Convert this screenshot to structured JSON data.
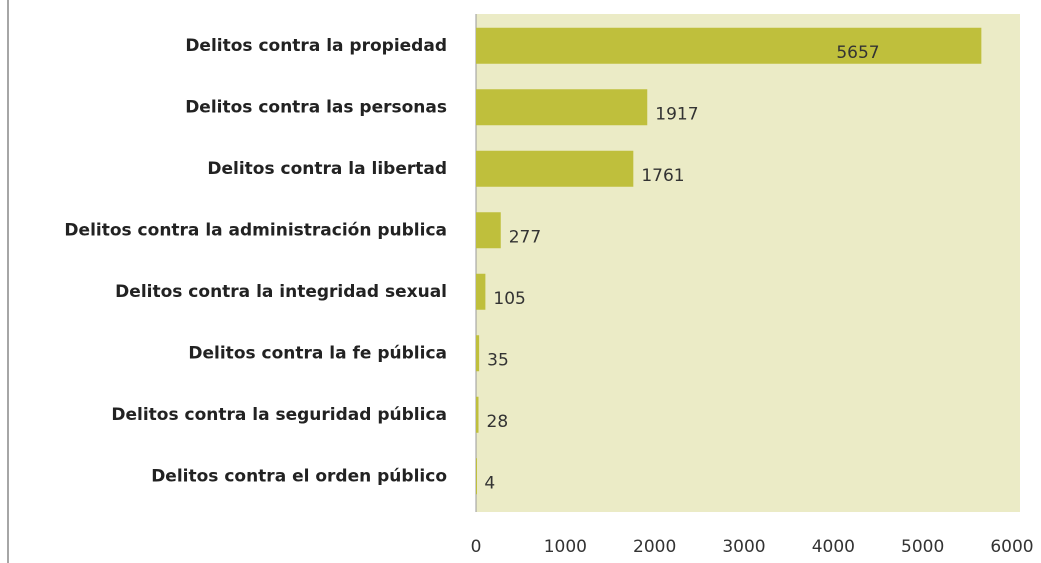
{
  "chart_data": {
    "type": "barh",
    "categories": [
      "Delitos contra la propiedad",
      "Delitos contra las personas",
      "Delitos contra la libertad",
      "Delitos contra la administración publica",
      "Delitos contra la integridad sexual",
      "Delitos contra la fe pública",
      "Delitos contra la seguridad pública",
      "Delitos contra el orden público"
    ],
    "values": [
      5657,
      1917,
      1761,
      277,
      105,
      35,
      28,
      4
    ],
    "color": "#bfbf3c",
    "xlim": [
      0,
      6000
    ],
    "xticks": [
      0,
      1000,
      2000,
      3000,
      4000,
      5000,
      6000
    ],
    "grid": false
  }
}
